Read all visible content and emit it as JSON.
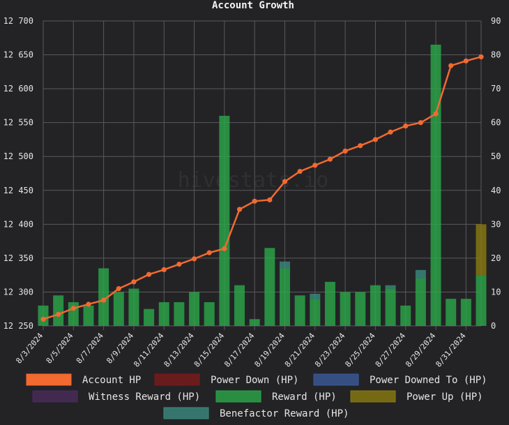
{
  "watermark": "hivestats.io",
  "colors": {
    "background": "#232326",
    "grid": "#5a5a5e",
    "text": "#e6e6e6",
    "account_hp": "#f26a30",
    "power_down": "#7a1a1a",
    "power_downed_to": "#3a5a9a",
    "witness_reward": "#4a2a5a",
    "reward": "#2aa84a",
    "power_up": "#8a7a10",
    "benefactor": "#3a8a80"
  },
  "chart_data": {
    "type": "bar+line",
    "title": "Account Growth",
    "x": [
      "8/3/2024",
      "8/4/2024",
      "8/5/2024",
      "8/6/2024",
      "8/7/2024",
      "8/8/2024",
      "8/9/2024",
      "8/10/2024",
      "8/11/2024",
      "8/12/2024",
      "8/13/2024",
      "8/14/2024",
      "8/15/2024",
      "8/16/2024",
      "8/17/2024",
      "8/18/2024",
      "8/19/2024",
      "8/20/2024",
      "8/21/2024",
      "8/22/2024",
      "8/23/2024",
      "8/24/2024",
      "8/25/2024",
      "8/26/2024",
      "8/27/2024",
      "8/28/2024",
      "8/29/2024",
      "8/30/2024",
      "8/31/2024",
      "9/1/2024"
    ],
    "x_tick_labels": [
      "8/3/2024",
      "8/5/2024",
      "8/7/2024",
      "8/9/2024",
      "8/11/2024",
      "8/13/2024",
      "8/15/2024",
      "8/17/2024",
      "8/19/2024",
      "8/21/2024",
      "8/23/2024",
      "8/25/2024",
      "8/27/2024",
      "8/29/2024",
      "8/31/2024"
    ],
    "y_left": {
      "ylim": [
        12250,
        12700
      ],
      "ticks": [
        "12 250",
        "12 300",
        "12 350",
        "12 400",
        "12 450",
        "12 500",
        "12 550",
        "12 600",
        "12 650",
        "12 700"
      ]
    },
    "y_right": {
      "ylim": [
        0,
        90
      ],
      "ticks": [
        "0",
        "10",
        "20",
        "30",
        "40",
        "50",
        "60",
        "70",
        "80",
        "90"
      ]
    },
    "grid": true,
    "legend_position": "bottom",
    "series": [
      {
        "name": "Account HP",
        "kind": "line",
        "axis": "left",
        "values": [
          12260,
          12267,
          12276,
          12282,
          12288,
          12305,
          12315,
          12326,
          12333,
          12341,
          12349,
          12358,
          12364,
          12422,
          12434,
          12436,
          12463,
          12478,
          12487,
          12496,
          12508,
          12516,
          12525,
          12536,
          12545,
          12550,
          12563,
          12634,
          12641,
          12647
        ]
      },
      {
        "name": "Power Down (HP)",
        "kind": "bar",
        "axis": "right",
        "values": [
          0,
          0,
          0,
          0,
          0,
          0,
          0,
          0,
          0,
          0,
          0,
          0,
          0,
          0,
          0,
          0,
          0,
          0,
          0,
          0,
          0,
          0,
          0,
          0,
          0,
          0,
          0,
          0,
          0,
          0
        ]
      },
      {
        "name": "Power Downed To (HP)",
        "kind": "bar",
        "axis": "right",
        "values": [
          0,
          0,
          0,
          0,
          0,
          0,
          0,
          0,
          0,
          0,
          0,
          0,
          0,
          0,
          0,
          0,
          0,
          0,
          0,
          0,
          0,
          0,
          0,
          0,
          0,
          0,
          0,
          0,
          0,
          0
        ]
      },
      {
        "name": "Witness Reward (HP)",
        "kind": "bar",
        "axis": "right",
        "values": [
          0,
          0,
          0,
          0,
          0,
          0,
          0,
          0,
          0,
          0,
          0,
          0,
          0,
          0,
          0,
          0,
          0,
          0,
          0,
          0,
          0,
          0,
          0,
          0,
          0,
          0,
          0,
          0,
          0,
          0
        ]
      },
      {
        "name": "Reward (HP)",
        "kind": "bar",
        "axis": "right",
        "values": [
          6,
          9,
          7,
          6,
          17,
          10,
          11,
          5,
          7,
          7,
          10,
          7,
          62,
          12,
          2,
          23,
          17,
          9,
          8,
          13,
          10,
          10,
          12,
          11,
          6,
          14,
          83,
          8,
          8,
          15
        ]
      },
      {
        "name": "Power Up (HP)",
        "kind": "bar",
        "axis": "right",
        "values": [
          0,
          0,
          0,
          0,
          0,
          0,
          0,
          0,
          0,
          0,
          0,
          0,
          0,
          0,
          0,
          0,
          0,
          0,
          0,
          0,
          0,
          0,
          0,
          0,
          0,
          0,
          0,
          0,
          0,
          15
        ]
      },
      {
        "name": "Benefactor Reward (HP)",
        "kind": "bar",
        "axis": "right",
        "values": [
          0,
          0,
          0,
          0,
          0,
          0,
          0,
          0,
          0,
          0,
          0,
          0,
          0,
          0,
          0,
          0,
          2,
          0,
          1.5,
          0,
          0,
          0,
          0,
          1,
          0,
          2.5,
          0,
          0,
          0,
          0
        ]
      }
    ]
  }
}
